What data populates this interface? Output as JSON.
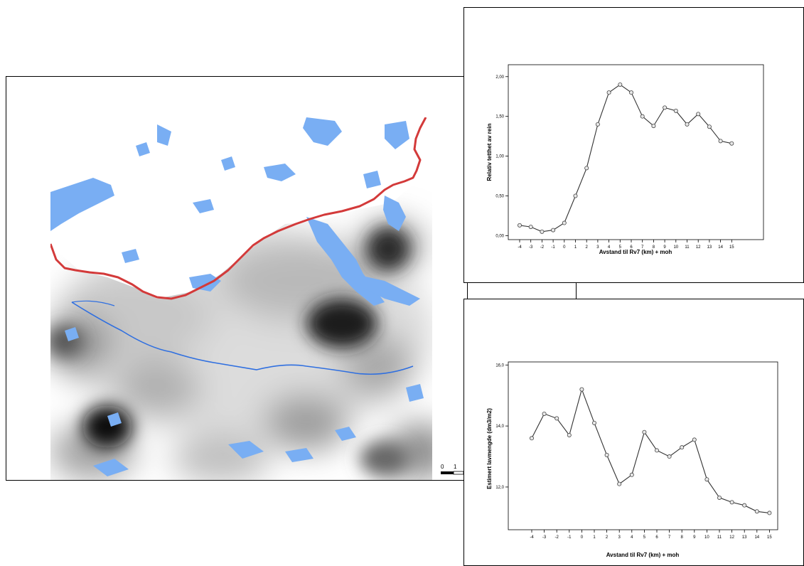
{
  "colors": {
    "water": "#79aef3",
    "road": "#d33a3a",
    "river": "#2f6fe0",
    "frame": "#000000",
    "line": "#333333",
    "marker_fill": "#e8e8e8"
  },
  "map": {
    "scale_labels": [
      "0",
      "1"
    ]
  },
  "chart_data": [
    {
      "type": "line",
      "xlabel": "Avstand til Rv7 (km) + moh",
      "ylabel": "Relativ tetthet av rein",
      "categories": [
        "-4",
        "-3",
        "-2",
        "-1",
        "0",
        "1",
        "2",
        "3",
        "4",
        "5",
        "6",
        "7",
        "8",
        "9",
        "10",
        "11",
        "12",
        "13",
        "14",
        "15"
      ],
      "values": [
        0.13,
        0.11,
        0.05,
        0.07,
        0.16,
        0.5,
        0.85,
        1.4,
        1.8,
        1.9,
        1.8,
        1.5,
        1.38,
        1.61,
        1.57,
        1.4,
        1.53,
        1.37,
        1.19,
        1.16
      ],
      "ylim": [
        -0.05,
        2.15
      ],
      "yticks": [
        0.0,
        0.5,
        1.0,
        1.5,
        2.0
      ],
      "ytick_labels": [
        "0,00",
        "0,50",
        "1,00",
        "1,50",
        "2,00"
      ],
      "grid": false
    },
    {
      "type": "line",
      "xlabel": "Avstand til Rv7 (km) + moh",
      "ylabel": "Estimert lavmengde (dm3/m2)",
      "categories": [
        "-4",
        "-3",
        "-2",
        "-1",
        "0",
        "1",
        "2",
        "3",
        "4",
        "5",
        "6",
        "7",
        "8",
        "9",
        "10",
        "11",
        "12",
        "13",
        "14",
        "15"
      ],
      "values": [
        13.6,
        14.4,
        14.25,
        13.7,
        15.2,
        14.1,
        13.05,
        12.1,
        12.4,
        13.8,
        13.2,
        13.0,
        13.3,
        13.55,
        12.25,
        11.65,
        11.5,
        11.4,
        11.2,
        11.15
      ],
      "ylim": [
        10.6,
        16.1
      ],
      "yticks": [
        12.0,
        14.0,
        16.0
      ],
      "ytick_labels": [
        "12,0",
        "14,0",
        "16,0"
      ],
      "grid": false
    }
  ]
}
